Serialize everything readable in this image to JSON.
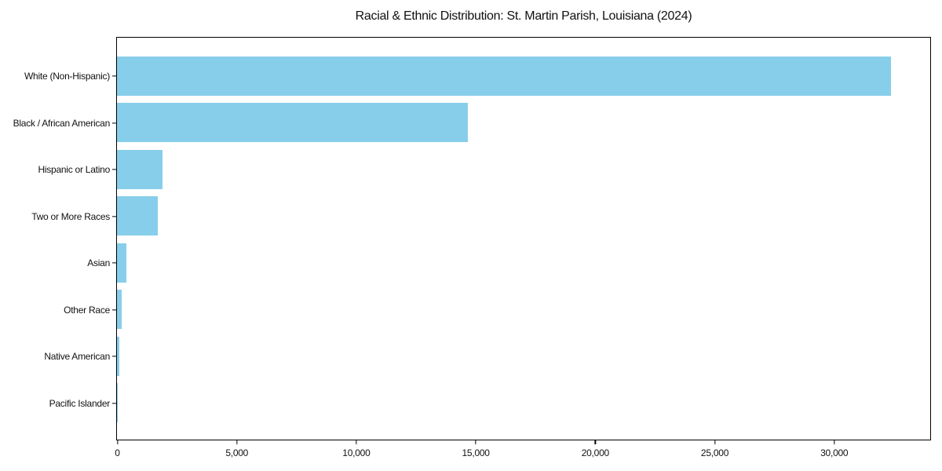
{
  "chart_data": {
    "type": "bar",
    "orientation": "horizontal",
    "title": "Racial & Ethnic Distribution: St. Martin Parish, Louisiana (2024)",
    "categories": [
      "White (Non-Hispanic)",
      "Black / African American",
      "Hispanic or Latino",
      "Two or More Races",
      "Asian",
      "Other Race",
      "Native American",
      "Pacific Islander"
    ],
    "values": [
      32400,
      14670,
      1890,
      1720,
      405,
      210,
      105,
      15
    ],
    "xlabel": "",
    "ylabel": "",
    "xlim": [
      0,
      34000
    ],
    "xticks": [
      0,
      5000,
      10000,
      15000,
      20000,
      25000,
      30000
    ],
    "xtick_labels": [
      "0",
      "5,000",
      "10,000",
      "15,000",
      "20,000",
      "25,000",
      "30,000"
    ],
    "bar_color": "#87CEEB",
    "frame_color": "#000000",
    "background": "#FFFFFF",
    "grid": false,
    "legend": null
  }
}
